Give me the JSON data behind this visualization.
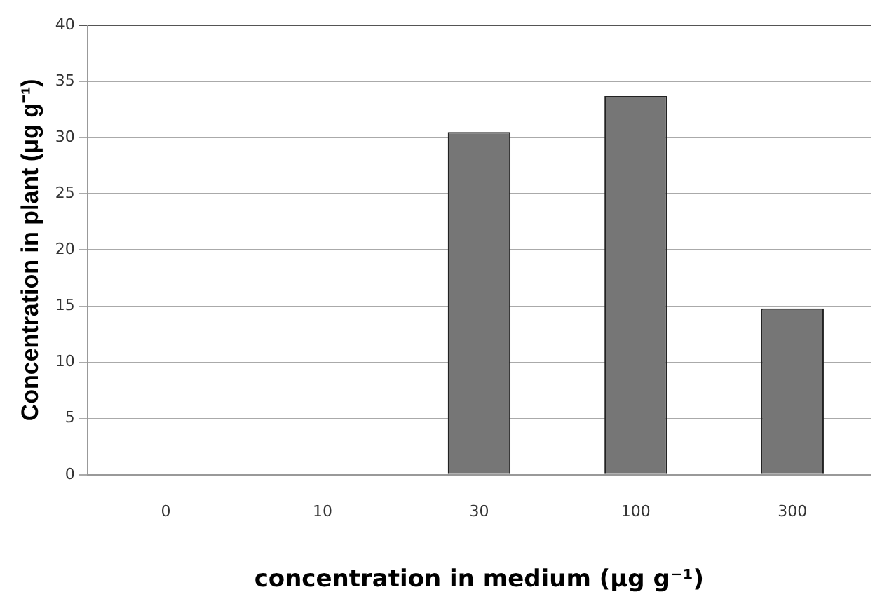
{
  "chart_data": {
    "type": "bar",
    "xlabel": "concentration in medium (μg g⁻¹)",
    "ylabel": "Concentration in plant (μg g⁻¹)",
    "categories": [
      "0",
      "10",
      "30",
      "100",
      "300"
    ],
    "values": [
      0,
      0,
      30.5,
      33.7,
      14.8
    ],
    "color": "#767676",
    "ylim": [
      0,
      40
    ],
    "yticks": [
      0,
      5,
      10,
      15,
      20,
      25,
      30,
      35,
      40
    ],
    "grid": "y",
    "legend": false
  }
}
